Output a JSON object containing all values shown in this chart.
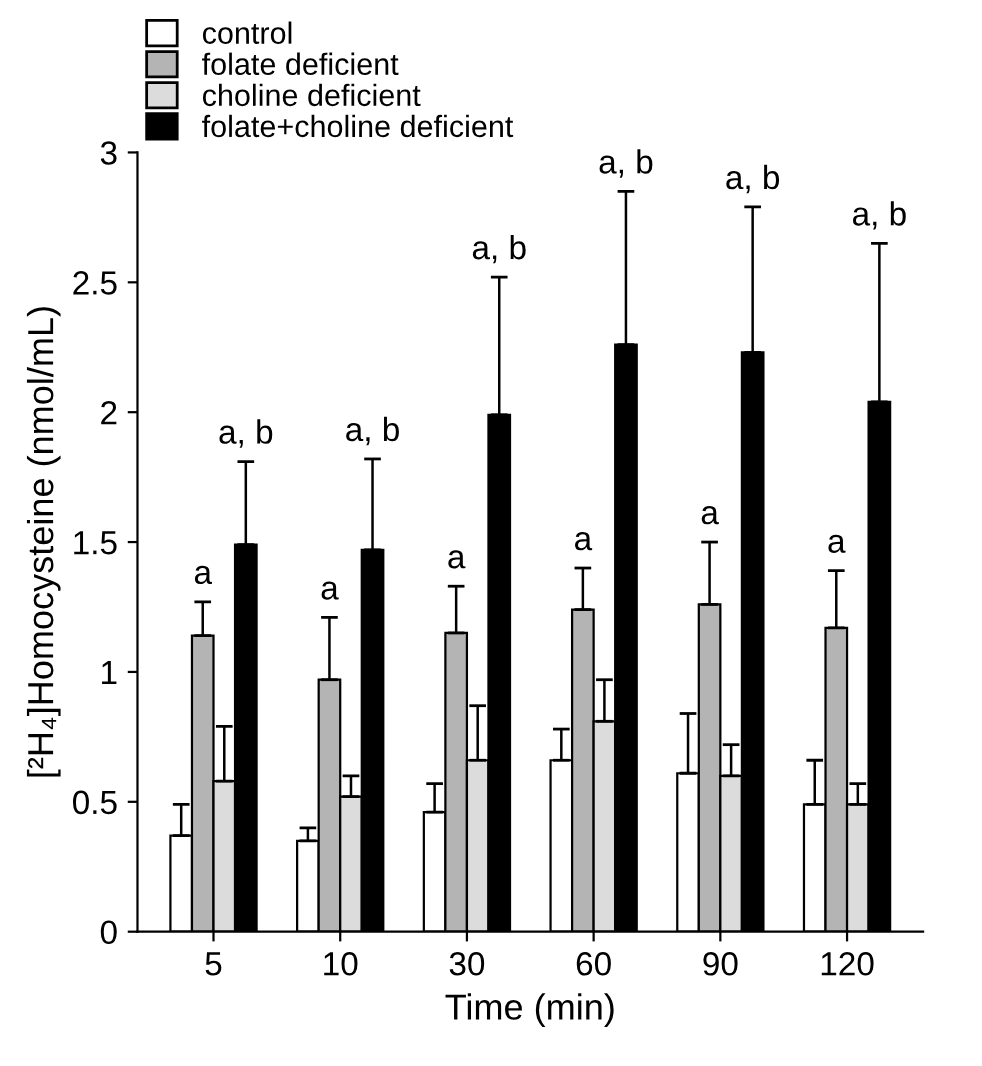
{
  "chart_data": {
    "type": "bar",
    "xlabel": "Time (min)",
    "ylabel": "[²H₄]Homocysteine (nmol/mL)",
    "categories": [
      "5",
      "10",
      "30",
      "60",
      "90",
      "120"
    ],
    "series": [
      {
        "name": "control",
        "color": "#ffffff",
        "values": [
          0.37,
          0.35,
          0.46,
          0.66,
          0.61,
          0.49
        ],
        "errors": [
          [
            0.37,
            0.49
          ],
          [
            0.35,
            0.4
          ],
          [
            0.46,
            0.57
          ],
          [
            0.66,
            0.78
          ],
          [
            0.61,
            0.84
          ],
          [
            0.49,
            0.66
          ]
        ]
      },
      {
        "name": "folate deficient",
        "color": "#b4b4b4",
        "values": [
          1.14,
          0.97,
          1.15,
          1.24,
          1.26,
          1.17
        ],
        "errors": [
          [
            1.14,
            1.27
          ],
          [
            0.97,
            1.21
          ],
          [
            1.15,
            1.33
          ],
          [
            1.24,
            1.4
          ],
          [
            1.26,
            1.5
          ],
          [
            1.17,
            1.39
          ]
        ]
      },
      {
        "name": "choline deficient",
        "color": "#dcdcdc",
        "values": [
          0.58,
          0.52,
          0.66,
          0.81,
          0.6,
          0.49
        ],
        "errors": [
          [
            0.58,
            0.79
          ],
          [
            0.52,
            0.6
          ],
          [
            0.66,
            0.87
          ],
          [
            0.81,
            0.97
          ],
          [
            0.6,
            0.72
          ],
          [
            0.49,
            0.57
          ]
        ]
      },
      {
        "name": "folate+choline deficient",
        "color": "#000000",
        "values": [
          1.49,
          1.47,
          1.99,
          2.26,
          2.23,
          2.04
        ],
        "errors": [
          [
            1.49,
            1.81
          ],
          [
            1.47,
            1.82
          ],
          [
            1.99,
            2.52
          ],
          [
            2.26,
            2.85
          ],
          [
            2.23,
            2.79
          ],
          [
            2.04,
            2.65
          ]
        ]
      }
    ],
    "ylim": [
      0,
      3
    ],
    "yticks": [
      0,
      0.5,
      1,
      1.5,
      2,
      2.5,
      3
    ],
    "grid": false,
    "legend": "top left",
    "annotations": [
      {
        "text": "a",
        "x": "5",
        "y": 1.27
      },
      {
        "text": "a",
        "x": "10",
        "y": 1.21
      },
      {
        "text": "a",
        "x": "30",
        "y": 1.33
      },
      {
        "text": "a",
        "x": "60",
        "y": 1.4
      },
      {
        "text": "a",
        "x": "90",
        "y": 1.5
      },
      {
        "text": "a",
        "x": "120",
        "y": 1.39
      },
      "a, b",
      "a, b",
      "a, b",
      "a, b",
      "a, b",
      "a, b"
    ]
  }
}
